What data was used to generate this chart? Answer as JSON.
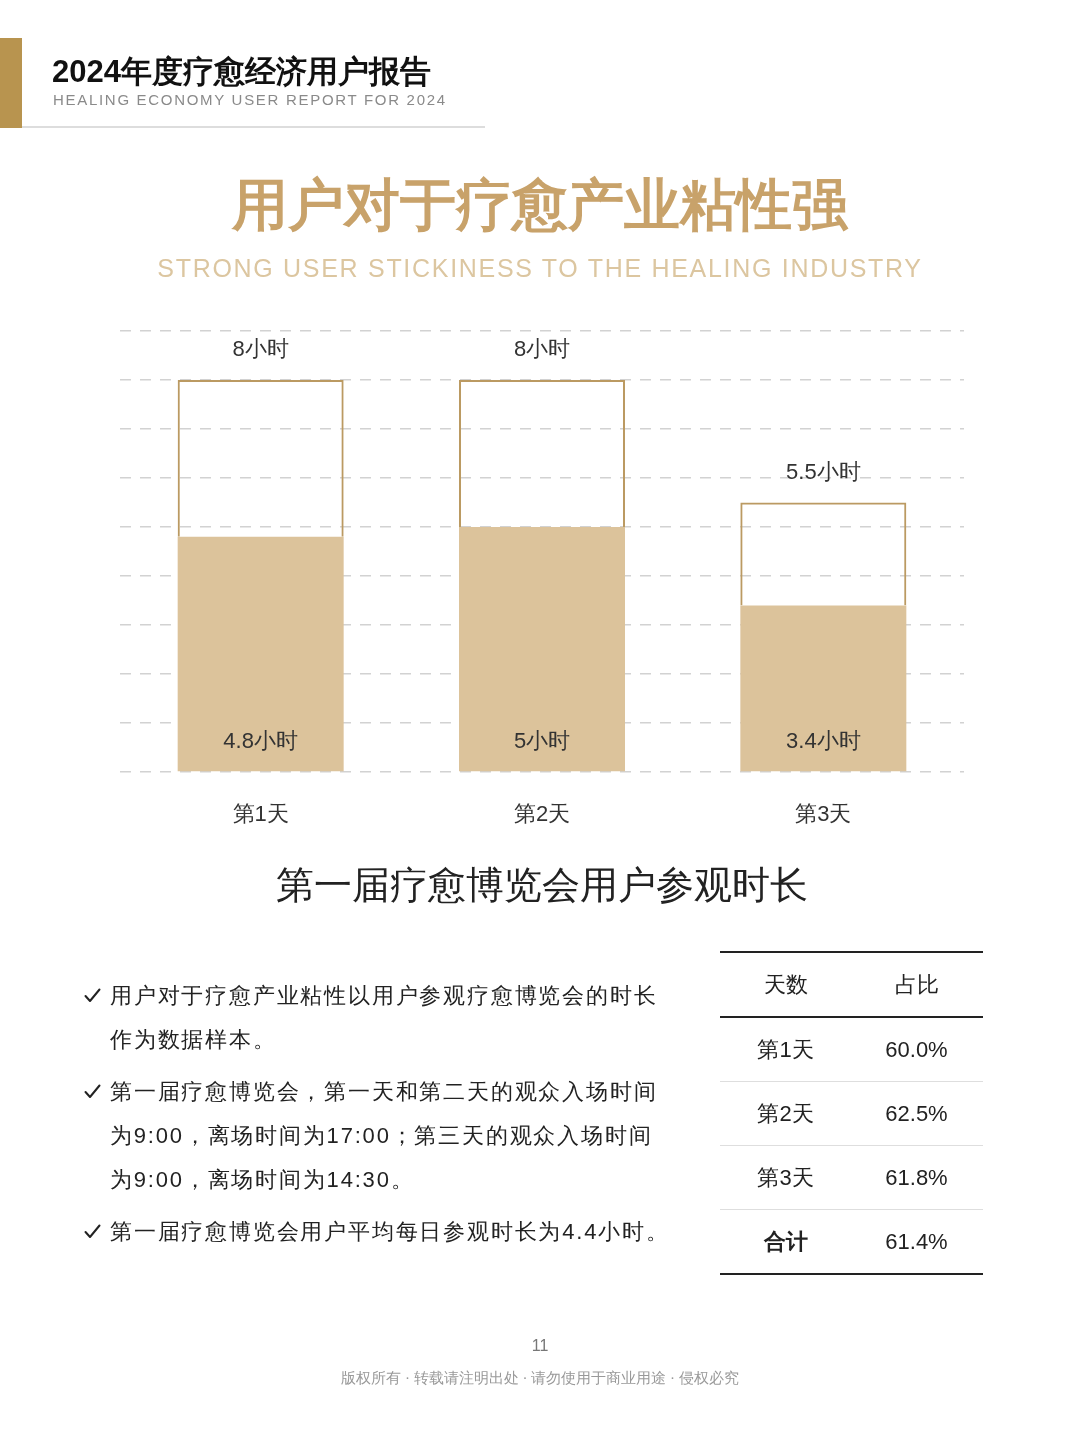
{
  "chart_data": {
    "type": "bar",
    "title": "用户对于疗愈产业粘性强",
    "subtitle": "STRONG USER STICKINESS TO THE HEALING INDUSTRY",
    "xlabel": "第一届疗愈博览会用户参观时长",
    "categories": [
      "第1天",
      "第2天",
      "第3天"
    ],
    "stacked": true,
    "series": [
      {
        "color": "#dcc39b",
        "values": [
          4.8,
          5,
          3.4
        ],
        "value_labels": [
          "4.8小时",
          "5小时",
          "3.4小时"
        ]
      },
      {
        "color": "#bb9a62",
        "values": [
          3.2,
          3,
          2.1
        ]
      }
    ],
    "totals": [
      "8小时",
      "8小时",
      "5.5小时"
    ],
    "ylim": [
      0,
      9
    ],
    "yticks": [
      {
        "value": 0,
        "label": null
      },
      {
        "value": 1,
        "label": null
      },
      {
        "value": 2,
        "label": null
      },
      {
        "value": 3,
        "label": null
      },
      {
        "value": 4,
        "label": null
      },
      {
        "value": 5,
        "label": null
      },
      {
        "value": 6,
        "label": null
      },
      {
        "value": 7,
        "label": null
      },
      {
        "value": 8,
        "label": null
      },
      {
        "value": 9,
        "label": null
      }
    ],
    "grid": "y",
    "legend": false,
    "tick_labels": "x",
    "annotations": [
      "2024年度疗愈经济用户报告",
      "HEALING ECONOMY USER REPORT FOR 2024",
      "用户对于疗愈产业粘性以用户参观疗愈博览会的时长作为数据样本。",
      "第一届疗愈博览会，第一天和第二天的观众入场时间为9:00，离场时间为17:00；第三天的观众入场时间为9:00，离场时间为14:30。",
      "第一届疗愈博览会用户平均每日参观时长为4.4小时。",
      "天数",
      "占比",
      "第1天",
      "60.0%",
      "第2天",
      "62.5%",
      "第3天",
      "61.8%",
      "合计",
      "61.4%",
      "11",
      "版权所有 · 转载请注明出处 · 请勿使用于商业用途 · 侵权必究"
    ]
  }
}
